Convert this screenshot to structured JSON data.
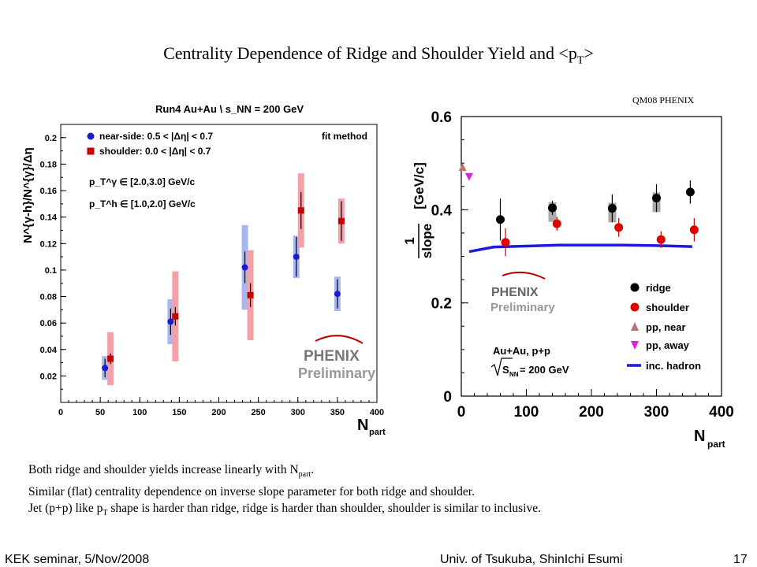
{
  "slide": {
    "title_main": "Centrality Dependence of Ridge and Shoulder Yield and <p",
    "title_sub": "T",
    "title_end": ">",
    "tag": "QM08 PHENIX",
    "bullets": [
      {
        "a": "Both ridge and shoulder yields increase linearly with N",
        "sub": "part",
        "b": "."
      },
      {
        "a": "Similar (flat) centrality dependence on inverse slope parameter for both ridge and shoulder.",
        "sub": "",
        "b": ""
      },
      {
        "a": "Jet (p+p) like p",
        "sub": "T",
        "b": " shape is harder than ridge, ridge is harder than shoulder, shoulder is similar to inclusive."
      }
    ],
    "footer_left": "KEK seminar, 5/Nov/2008",
    "footer_center": "Univ. of Tsukuba, ShinIchi Esumi",
    "footer_right": "17"
  },
  "colors": {
    "blue": "#1a1ad0",
    "red": "#c80000",
    "pink": "#f5a0a8",
    "lightblue": "#a8b8ee",
    "hadron": "#1a1ae0",
    "pp_near": "#c07070",
    "pp_away": "#e020e0"
  },
  "chart_data": [
    {
      "type": "scatter",
      "title": "Run4 Au+Au \\ s_NN = 200 GeV",
      "label_method": "fit method",
      "xlabel": "N",
      "xlabel_sub": "part",
      "ylabel": "N^{γ-h}/N^{γ}/Δη",
      "xlim": [
        0,
        400
      ],
      "ylim": [
        0,
        0.21
      ],
      "xticks": [
        0,
        50,
        100,
        150,
        200,
        250,
        300,
        350,
        400
      ],
      "yticks": [
        0.02,
        0.04,
        0.06,
        0.08,
        0.1,
        0.12,
        0.14,
        0.16,
        0.18,
        0.2
      ],
      "legend_position": "top-left",
      "cuts": [
        "p_T^γ ∈ [2.0,3.0] GeV/c",
        "p_T^h ∈ [1.0,2.0] GeV/c"
      ],
      "logo": "PHENIX Preliminary",
      "series": [
        {
          "name": "near-side: 0.5 < |Δη| < 0.7",
          "marker": "circle",
          "x": [
            56,
            139,
            233,
            298,
            350
          ],
          "y": [
            0.026,
            0.061,
            0.102,
            0.11,
            0.082
          ],
          "err": [
            0.007,
            0.01,
            0.012,
            0.015,
            0.011
          ],
          "sys": [
            0.009,
            0.017,
            0.032,
            0.016,
            0.013
          ]
        },
        {
          "name": "shoulder: 0.0 < |Δη| < 0.7",
          "marker": "square",
          "x": [
            63,
            145,
            240,
            304,
            355
          ],
          "y": [
            0.033,
            0.065,
            0.081,
            0.145,
            0.137
          ],
          "err": [
            0.004,
            0.007,
            0.009,
            0.014,
            0.015
          ],
          "sys": [
            0.02,
            0.034,
            0.034,
            0.028,
            0.017
          ]
        }
      ]
    },
    {
      "type": "scatter",
      "title": "",
      "xlabel": "N",
      "xlabel_sub": "part",
      "ylabel_num": "1",
      "ylabel_den": "slope",
      "ylabel_unit": "[GeV/c]",
      "xlim": [
        0,
        400
      ],
      "ylim": [
        0,
        0.6
      ],
      "xticks": [
        0,
        100,
        200,
        300,
        400
      ],
      "yticks": [
        0,
        0.2,
        0.4,
        0.6
      ],
      "legend_position": "bottom-right",
      "logo": "PHENIX Preliminary",
      "system": "Au+Au, p+p",
      "energy": "S",
      "energy_sub": "NN",
      "energy_val": " = 200 GeV",
      "series": [
        {
          "name": "ridge",
          "marker": "circle",
          "x": [
            60,
            140,
            232,
            300,
            352
          ],
          "y": [
            0.379,
            0.404,
            0.403,
            0.425,
            0.438
          ],
          "err": [
            0.045,
            0.015,
            0.03,
            0.03,
            0.025
          ]
        },
        {
          "name": "shoulder",
          "marker": "circle",
          "x": [
            68,
            147,
            242,
            307,
            358
          ],
          "y": [
            0.33,
            0.37,
            0.362,
            0.336,
            0.357
          ],
          "err": [
            0.03,
            0.015,
            0.02,
            0.018,
            0.025
          ]
        },
        {
          "name": "pp, near",
          "marker": "triangle-up",
          "x": [
            2
          ],
          "y": [
            0.49
          ]
        },
        {
          "name": "pp, away",
          "marker": "triangle-down",
          "x": [
            12
          ],
          "y": [
            0.472
          ]
        },
        {
          "name": "inc. hadron",
          "marker": "line",
          "x": [
            12,
            50,
            100,
            150,
            200,
            250,
            300,
            355
          ],
          "y": [
            0.31,
            0.32,
            0.322,
            0.324,
            0.324,
            0.324,
            0.323,
            0.321
          ]
        }
      ]
    }
  ]
}
